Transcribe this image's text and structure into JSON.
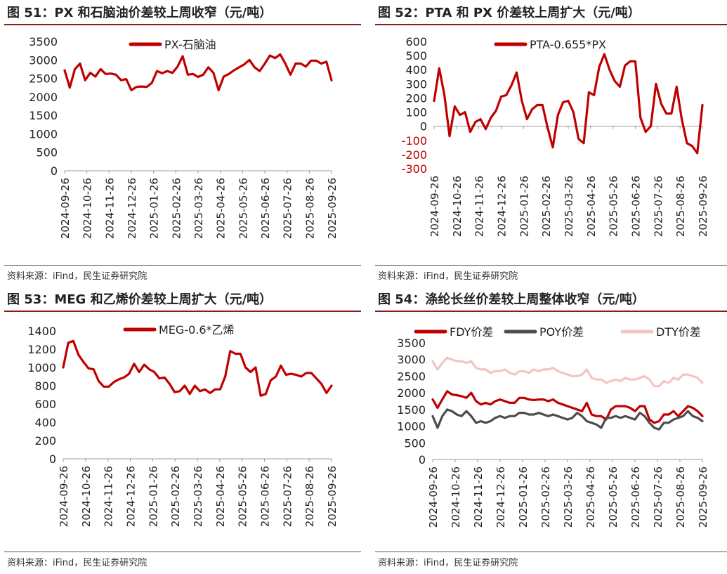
{
  "panels": [
    {
      "id": "p1",
      "title": "图 51：PX 和石脑油价差较上周收窄（元/吨）",
      "source": "资料来源：iFind，民生证券研究院"
    },
    {
      "id": "p2",
      "title": "图 52：PTA 和 PX 价差较上周扩大（元/吨）",
      "source": "资料来源：iFind，民生证券研究院"
    },
    {
      "id": "p3",
      "title": "图 53：MEG 和乙烯价差较上周扩大（元/吨）",
      "source": "资料来源：iFind，民生证券研究院"
    },
    {
      "id": "p4",
      "title": "图 54：涤纶长丝价差较上周整体收窄（元/吨）",
      "source": "资料来源：iFind，民生证券研究院"
    }
  ],
  "chart_data": [
    {
      "type": "line",
      "x_ticks": [
        "2024-09-26",
        "2024-10-26",
        "2024-11-26",
        "2024-12-26",
        "2025-01-26",
        "2025-02-26",
        "2025-03-26",
        "2025-04-26",
        "2025-05-26",
        "2025-06-26",
        "2025-07-26",
        "2025-08-26",
        "2025-09-26"
      ],
      "ylim": [
        0,
        3500
      ],
      "y_ticks": [
        0,
        500,
        1000,
        1500,
        2000,
        2500,
        3000,
        3500
      ],
      "legend_position": "top-center",
      "series": [
        {
          "name": "PX-石脑油",
          "color": "#c00000",
          "values": [
            2720,
            2250,
            2750,
            2900,
            2450,
            2650,
            2550,
            2750,
            2620,
            2630,
            2600,
            2450,
            2480,
            2180,
            2270,
            2280,
            2270,
            2380,
            2700,
            2640,
            2700,
            2650,
            2820,
            3100,
            2600,
            2620,
            2540,
            2600,
            2800,
            2650,
            2180,
            2550,
            2620,
            2720,
            2800,
            2880,
            3000,
            2800,
            2700,
            2900,
            3120,
            3050,
            3150,
            2900,
            2600,
            2900,
            2900,
            2820,
            2980,
            2980,
            2900,
            2950,
            2450
          ]
        }
      ]
    },
    {
      "type": "line",
      "x_ticks": [
        "2024-09-26",
        "2024-10-26",
        "2024-11-26",
        "2024-12-26",
        "2025-01-26",
        "2025-02-26",
        "2025-03-26",
        "2025-04-26",
        "2025-05-26",
        "2025-06-26",
        "2025-07-26",
        "2025-08-26",
        "2025-09-26"
      ],
      "ylim": [
        -300,
        600
      ],
      "y_ticks": [
        -300,
        -200,
        -100,
        0,
        100,
        200,
        300,
        400,
        500,
        600
      ],
      "legend_position": "top-center",
      "series": [
        {
          "name": "PTA-0.655*PX",
          "color": "#c00000",
          "values": [
            180,
            410,
            220,
            -70,
            140,
            80,
            100,
            -40,
            30,
            50,
            -20,
            60,
            110,
            210,
            220,
            290,
            380,
            180,
            50,
            120,
            150,
            150,
            -10,
            -150,
            80,
            170,
            180,
            100,
            -90,
            -120,
            240,
            220,
            420,
            510,
            400,
            320,
            280,
            430,
            460,
            460,
            60,
            -40,
            0,
            300,
            160,
            90,
            90,
            280,
            50,
            -120,
            -140,
            -190,
            150
          ]
        }
      ]
    },
    {
      "type": "line",
      "x_ticks": [
        "2024-09-26",
        "2024-10-26",
        "2024-11-26",
        "2024-12-26",
        "2025-01-26",
        "2025-02-26",
        "2025-03-26",
        "2025-04-26",
        "2025-05-26",
        "2025-06-26",
        "2025-07-26",
        "2025-08-26",
        "2025-09-26"
      ],
      "ylim": [
        0,
        1400
      ],
      "y_ticks": [
        0,
        200,
        400,
        600,
        800,
        1000,
        1200,
        1400
      ],
      "legend_position": "top-center",
      "series": [
        {
          "name": "MEG-0.6*乙烯",
          "color": "#c00000",
          "values": [
            1000,
            1270,
            1290,
            1140,
            1060,
            990,
            980,
            850,
            790,
            790,
            840,
            870,
            890,
            930,
            1040,
            950,
            1030,
            980,
            950,
            880,
            890,
            820,
            730,
            740,
            800,
            710,
            800,
            740,
            760,
            720,
            760,
            760,
            900,
            1180,
            1150,
            1150,
            1000,
            950,
            1000,
            690,
            710,
            860,
            900,
            1020,
            920,
            930,
            920,
            900,
            940,
            940,
            880,
            820,
            720,
            800
          ]
        }
      ]
    },
    {
      "type": "line",
      "x_ticks": [
        "2024-09-26",
        "2024-10-26",
        "2024-11-26",
        "2024-12-26",
        "2025-01-26",
        "2025-02-26",
        "2025-03-26",
        "2025-04-26",
        "2025-05-26",
        "2025-06-26",
        "2025-07-26",
        "2025-08-26",
        "2025-09-26"
      ],
      "ylim": [
        0,
        3500
      ],
      "y_ticks": [
        0,
        500,
        1000,
        1500,
        2000,
        2500,
        3000,
        3500
      ],
      "legend_position": "top",
      "series": [
        {
          "name": "FDY价差",
          "color": "#c00000",
          "values": [
            1800,
            1550,
            1800,
            2050,
            1950,
            1930,
            1900,
            1850,
            2000,
            1750,
            1650,
            1700,
            1650,
            1750,
            1800,
            1750,
            1700,
            1700,
            1850,
            1850,
            1800,
            1780,
            1800,
            1800,
            1750,
            1800,
            1700,
            1650,
            1600,
            1550,
            1500,
            1450,
            1700,
            1350,
            1300,
            1300,
            1200,
            1500,
            1600,
            1600,
            1600,
            1550,
            1450,
            1600,
            1600,
            1200,
            1100,
            1150,
            1350,
            1350,
            1450,
            1300,
            1450,
            1600,
            1550,
            1450,
            1300
          ]
        },
        {
          "name": "POY价差",
          "color": "#4d4d4d",
          "values": [
            1300,
            950,
            1300,
            1500,
            1450,
            1350,
            1300,
            1450,
            1300,
            1100,
            1150,
            1100,
            1150,
            1250,
            1300,
            1250,
            1300,
            1300,
            1400,
            1400,
            1350,
            1350,
            1400,
            1350,
            1300,
            1350,
            1300,
            1250,
            1200,
            1250,
            1400,
            1300,
            1150,
            1100,
            1050,
            950,
            1250,
            1250,
            1300,
            1250,
            1300,
            1250,
            1200,
            1400,
            1300,
            1100,
            950,
            900,
            1100,
            1100,
            1200,
            1250,
            1300,
            1450,
            1300,
            1250,
            1150
          ]
        },
        {
          "name": "DTY价差",
          "color": "#f2c4c4",
          "values": [
            2950,
            2700,
            2900,
            3050,
            3000,
            2950,
            2950,
            2900,
            2950,
            2750,
            2700,
            2700,
            2600,
            2650,
            2650,
            2700,
            2600,
            2550,
            2650,
            2650,
            2600,
            2700,
            2650,
            2700,
            2700,
            2750,
            2650,
            2600,
            2550,
            2500,
            2500,
            2550,
            2700,
            2450,
            2400,
            2400,
            2300,
            2350,
            2400,
            2350,
            2450,
            2400,
            2400,
            2450,
            2500,
            2400,
            2200,
            2200,
            2350,
            2300,
            2450,
            2400,
            2550,
            2550,
            2500,
            2450,
            2300
          ]
        }
      ]
    }
  ]
}
